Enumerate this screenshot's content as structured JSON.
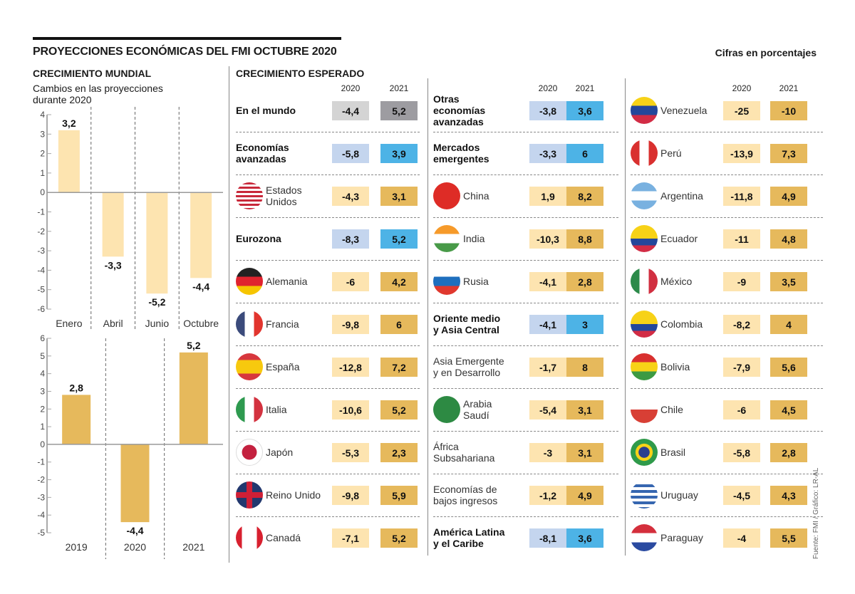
{
  "header": {
    "title": "PROYECCIONES ECONÓMICAS DEL FMI OCTUBRE 2020",
    "units": "Cifras en porcentajes",
    "source": "Fuente: FMI / Gráfico: LR-AL"
  },
  "colors": {
    "light_cream": "#fde4b0",
    "gold": "#e6b95c",
    "light_blue": "#c4d5ee",
    "blue": "#4db3e6",
    "light_gray": "#d4d4d4",
    "dark_gray": "#9d9ca1"
  },
  "chart_data": [
    {
      "type": "bar",
      "title": "CRECIMIENTO MUNDIAL",
      "subtitle": "Cambios en las proyecciones durante 2020",
      "categories": [
        "Enero",
        "Abril",
        "Junio",
        "Octubre"
      ],
      "values": [
        3.2,
        -3.3,
        -5.2,
        -4.4
      ],
      "labels": [
        "3,2",
        "-3,3",
        "-5,2",
        "-4,4"
      ],
      "ylim": [
        -6,
        4
      ],
      "yticks": [
        "4",
        "3",
        "2",
        "1",
        "0",
        "-1",
        "-2",
        "-3",
        "-4",
        "-5",
        "-6"
      ],
      "color": "#fde4b0"
    },
    {
      "type": "bar",
      "categories": [
        "2019",
        "2020",
        "2021"
      ],
      "values": [
        2.8,
        -4.4,
        5.2
      ],
      "labels": [
        "2,8",
        "-4,4",
        "5,2"
      ],
      "ylim": [
        -5,
        6
      ],
      "yticks": [
        "6",
        "5",
        "4",
        "3",
        "2",
        "1",
        "0",
        "-1",
        "-2",
        "-3",
        "-4",
        "-5"
      ],
      "color": "#e6b95c"
    },
    {
      "type": "table",
      "title": "CRECIMIENTO ESPERADO",
      "columns": [
        "2020",
        "2021"
      ],
      "rows": [
        {
          "name": "En el mundo",
          "v2020": "-4,4",
          "v2021": "5,2"
        },
        {
          "name": "Economías avanzadas",
          "v2020": "-5,8",
          "v2021": "3,9"
        },
        {
          "name": "Estados Unidos",
          "v2020": "-4,3",
          "v2021": "3,1"
        },
        {
          "name": "Eurozona",
          "v2020": "-8,3",
          "v2021": "5,2"
        },
        {
          "name": "Alemania",
          "v2020": "-6",
          "v2021": "4,2"
        },
        {
          "name": "Francia",
          "v2020": "-9,8",
          "v2021": "6"
        },
        {
          "name": "España",
          "v2020": "-12,8",
          "v2021": "7,2"
        },
        {
          "name": "Italia",
          "v2020": "-10,6",
          "v2021": "5,2"
        },
        {
          "name": "Japón",
          "v2020": "-5,3",
          "v2021": "2,3"
        },
        {
          "name": "Reino Unido",
          "v2020": "-9,8",
          "v2021": "5,9"
        },
        {
          "name": "Canadá",
          "v2020": "-7,1",
          "v2021": "5,2"
        },
        {
          "name": "Otras economías avanzadas",
          "v2020": "-3,8",
          "v2021": "3,6"
        },
        {
          "name": "Mercados emergentes",
          "v2020": "-3,3",
          "v2021": "6"
        },
        {
          "name": "China",
          "v2020": "1,9",
          "v2021": "8,2"
        },
        {
          "name": "India",
          "v2020": "-10,3",
          "v2021": "8,8"
        },
        {
          "name": "Rusia",
          "v2020": "-4,1",
          "v2021": "2,8"
        },
        {
          "name": "Oriente medio y Asia Central",
          "v2020": "-4,1",
          "v2021": "3"
        },
        {
          "name": "Asia Emergente y en Desarrollo",
          "v2020": "-1,7",
          "v2021": "8"
        },
        {
          "name": "Arabia Saudí",
          "v2020": "-5,4",
          "v2021": "3,1"
        },
        {
          "name": "África Subsahariana",
          "v2020": "-3",
          "v2021": "3,1"
        },
        {
          "name": "Economías de bajos ingresos",
          "v2020": "-1,2",
          "v2021": "4,9"
        },
        {
          "name": "América Latina y el Caribe",
          "v2020": "-8,1",
          "v2021": "3,6"
        },
        {
          "name": "Venezuela",
          "v2020": "-25",
          "v2021": "-10"
        },
        {
          "name": "Perú",
          "v2020": "-13,9",
          "v2021": "7,3"
        },
        {
          "name": "Argentina",
          "v2020": "-11,8",
          "v2021": "4,9"
        },
        {
          "name": "Ecuador",
          "v2020": "-11",
          "v2021": "4,8"
        },
        {
          "name": "México",
          "v2020": "-9",
          "v2021": "3,5"
        },
        {
          "name": "Colombia",
          "v2020": "-8,2",
          "v2021": "4"
        },
        {
          "name": "Bolivia",
          "v2020": "-7,9",
          "v2021": "5,6"
        },
        {
          "name": "Chile",
          "v2020": "-6",
          "v2021": "4,5"
        },
        {
          "name": "Brasil",
          "v2020": "-5,8",
          "v2021": "2,8"
        },
        {
          "name": "Uruguay",
          "v2020": "-4,5",
          "v2021": "4,3"
        },
        {
          "name": "Paraguay",
          "v2020": "-4",
          "v2021": "5,5"
        }
      ]
    }
  ],
  "table": {
    "title": "CRECIMIENTO ESPERADO",
    "year_2020": "2020",
    "year_2021": "2021",
    "columns": [
      [
        {
          "l1": "En el mundo",
          "l2": "",
          "bold": true,
          "flag": "",
          "v2020": "-4,4",
          "v2021": "5,2",
          "scheme": "gray"
        },
        {
          "l1": "Economías",
          "l2": "avanzadas",
          "bold": true,
          "flag": "",
          "v2020": "-5,8",
          "v2021": "3,9",
          "scheme": "blue"
        },
        {
          "l1": "Estados",
          "l2": "Unidos",
          "bold": false,
          "flag": "usa",
          "v2020": "-4,3",
          "v2021": "3,1",
          "scheme": "gold"
        },
        {
          "l1": "Eurozona",
          "l2": "",
          "bold": true,
          "flag": "",
          "v2020": "-8,3",
          "v2021": "5,2",
          "scheme": "blue"
        },
        {
          "l1": "Alemania",
          "l2": "",
          "bold": false,
          "flag": "germany",
          "v2020": "-6",
          "v2021": "4,2",
          "scheme": "gold"
        },
        {
          "l1": "Francia",
          "l2": "",
          "bold": false,
          "flag": "france",
          "v2020": "-9,8",
          "v2021": "6",
          "scheme": "gold"
        },
        {
          "l1": "España",
          "l2": "",
          "bold": false,
          "flag": "spain",
          "v2020": "-12,8",
          "v2021": "7,2",
          "scheme": "gold"
        },
        {
          "l1": "Italia",
          "l2": "",
          "bold": false,
          "flag": "italy",
          "v2020": "-10,6",
          "v2021": "5,2",
          "scheme": "gold"
        },
        {
          "l1": "Japón",
          "l2": "",
          "bold": false,
          "flag": "japan",
          "v2020": "-5,3",
          "v2021": "2,3",
          "scheme": "gold"
        },
        {
          "l1": "Reino Unido",
          "l2": "",
          "bold": false,
          "flag": "uk",
          "v2020": "-9,8",
          "v2021": "5,9",
          "scheme": "gold"
        },
        {
          "l1": "Canadá",
          "l2": "",
          "bold": false,
          "flag": "canada",
          "v2020": "-7,1",
          "v2021": "5,2",
          "scheme": "gold"
        }
      ],
      [
        {
          "l1": "Otras",
          "l2": "economías",
          "l3": "avanzadas",
          "bold": true,
          "flag": "",
          "v2020": "-3,8",
          "v2021": "3,6",
          "scheme": "blue"
        },
        {
          "l1": "Mercados",
          "l2": "emergentes",
          "bold": true,
          "flag": "",
          "v2020": "-3,3",
          "v2021": "6",
          "scheme": "blue"
        },
        {
          "l1": "China",
          "l2": "",
          "bold": false,
          "flag": "china",
          "v2020": "1,9",
          "v2021": "8,2",
          "scheme": "gold"
        },
        {
          "l1": "India",
          "l2": "",
          "bold": false,
          "flag": "india",
          "v2020": "-10,3",
          "v2021": "8,8",
          "scheme": "gold"
        },
        {
          "l1": "Rusia",
          "l2": "",
          "bold": false,
          "flag": "russia",
          "v2020": "-4,1",
          "v2021": "2,8",
          "scheme": "gold"
        },
        {
          "l1": "Oriente medio",
          "l2": "y Asia Central",
          "bold": true,
          "flag": "",
          "v2020": "-4,1",
          "v2021": "3",
          "scheme": "blue"
        },
        {
          "l1": "Asia Emergente",
          "l2": "y en Desarrollo",
          "bold": false,
          "flag": "",
          "v2020": "-1,7",
          "v2021": "8",
          "scheme": "gold"
        },
        {
          "l1": "Arabia",
          "l2": "Saudí",
          "bold": false,
          "flag": "saudi",
          "v2020": "-5,4",
          "v2021": "3,1",
          "scheme": "gold"
        },
        {
          "l1": "África",
          "l2": "Subsahariana",
          "bold": false,
          "flag": "",
          "v2020": "-3",
          "v2021": "3,1",
          "scheme": "gold"
        },
        {
          "l1": "Economías de",
          "l2": "bajos ingresos",
          "bold": false,
          "flag": "",
          "v2020": "-1,2",
          "v2021": "4,9",
          "scheme": "gold"
        },
        {
          "l1": "América Latina",
          "l2": "y el Caribe",
          "bold": true,
          "flag": "",
          "v2020": "-8,1",
          "v2021": "3,6",
          "scheme": "blue"
        }
      ],
      [
        {
          "l1": "Venezuela",
          "l2": "",
          "bold": false,
          "flag": "venezuela",
          "v2020": "-25",
          "v2021": "-10",
          "scheme": "gold"
        },
        {
          "l1": "Perú",
          "l2": "",
          "bold": false,
          "flag": "peru",
          "v2020": "-13,9",
          "v2021": "7,3",
          "scheme": "gold"
        },
        {
          "l1": "Argentina",
          "l2": "",
          "bold": false,
          "flag": "argentina",
          "v2020": "-11,8",
          "v2021": "4,9",
          "scheme": "gold"
        },
        {
          "l1": "Ecuador",
          "l2": "",
          "bold": false,
          "flag": "ecuador",
          "v2020": "-11",
          "v2021": "4,8",
          "scheme": "gold"
        },
        {
          "l1": "México",
          "l2": "",
          "bold": false,
          "flag": "mexico",
          "v2020": "-9",
          "v2021": "3,5",
          "scheme": "gold"
        },
        {
          "l1": "Colombia",
          "l2": "",
          "bold": false,
          "flag": "colombia",
          "v2020": "-8,2",
          "v2021": "4",
          "scheme": "gold"
        },
        {
          "l1": "Bolivia",
          "l2": "",
          "bold": false,
          "flag": "bolivia",
          "v2020": "-7,9",
          "v2021": "5,6",
          "scheme": "gold"
        },
        {
          "l1": "Chile",
          "l2": "",
          "bold": false,
          "flag": "chile",
          "v2020": "-6",
          "v2021": "4,5",
          "scheme": "gold"
        },
        {
          "l1": "Brasil",
          "l2": "",
          "bold": false,
          "flag": "brazil",
          "v2020": "-5,8",
          "v2021": "2,8",
          "scheme": "gold"
        },
        {
          "l1": "Uruguay",
          "l2": "",
          "bold": false,
          "flag": "uruguay",
          "v2020": "-4,5",
          "v2021": "4,3",
          "scheme": "gold"
        },
        {
          "l1": "Paraguay",
          "l2": "",
          "bold": false,
          "flag": "paraguay",
          "v2020": "-4",
          "v2021": "5,5",
          "scheme": "gold"
        }
      ]
    ]
  }
}
